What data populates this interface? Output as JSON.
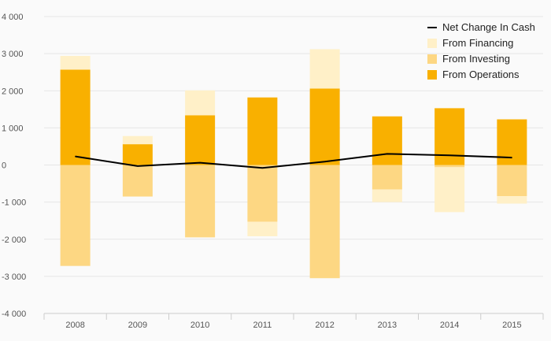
{
  "chart_data": {
    "type": "bar",
    "categories": [
      "2008",
      "2009",
      "2010",
      "2011",
      "2012",
      "2013",
      "2014",
      "2015"
    ],
    "series": [
      {
        "name": "From Operations",
        "type": "bar",
        "color": "#f9b000",
        "values": [
          2570,
          560,
          1340,
          1820,
          2060,
          1310,
          1530,
          1230
        ]
      },
      {
        "name": "From Investing",
        "type": "bar",
        "color": "#fdd783",
        "values": [
          -2720,
          -850,
          -1950,
          -1530,
          -3050,
          -660,
          -60,
          -840
        ]
      },
      {
        "name": "From Financing",
        "type": "bar",
        "color": "#fff0c8",
        "values": [
          370,
          220,
          670,
          -390,
          1060,
          -340,
          -1210,
          -200
        ]
      },
      {
        "name": "Net Change In Cash",
        "type": "line",
        "color": "#000000",
        "values": [
          230,
          -30,
          60,
          -80,
          90,
          300,
          260,
          200
        ]
      }
    ],
    "yticks": [
      "4 000",
      "3 000",
      "2 000",
      "1 000",
      "0",
      "-1 000",
      "-2 000",
      "-3 000",
      "-4 000"
    ],
    "ylim": [
      -4000,
      4000
    ],
    "grid": true,
    "legend_position": "top-right",
    "legend_order": [
      "Net Change In Cash",
      "From Financing",
      "From Investing",
      "From Operations"
    ],
    "title": "",
    "xlabel": "",
    "ylabel": ""
  }
}
